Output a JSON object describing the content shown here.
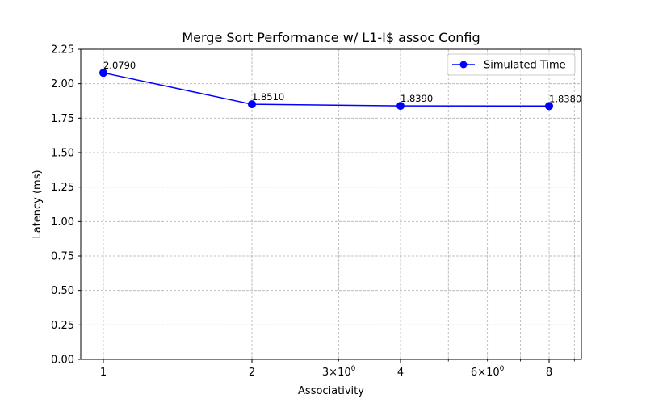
{
  "chart_data": {
    "type": "line",
    "title": "Merge Sort Performance w/ L1-I$ assoc Config",
    "xlabel": "Associativity",
    "ylabel": "Latency (ms)",
    "xscale": "log2",
    "xlim": [
      0.9,
      9.3
    ],
    "ylim": [
      0,
      2.25
    ],
    "x_major_ticks": [
      {
        "value": 1,
        "label": "1"
      },
      {
        "value": 2,
        "label": "2"
      },
      {
        "value": 4,
        "label": "4"
      },
      {
        "value": 8,
        "label": "8"
      }
    ],
    "x_minor_ticks": [
      {
        "value": 3,
        "base": "3",
        "exp": "0"
      },
      {
        "value": 5,
        "base": "",
        "exp": ""
      },
      {
        "value": 6,
        "base": "6",
        "exp": "0"
      },
      {
        "value": 7,
        "base": "",
        "exp": ""
      },
      {
        "value": 9,
        "base": "",
        "exp": ""
      }
    ],
    "y_ticks": [
      "0.00",
      "0.25",
      "0.50",
      "0.75",
      "1.00",
      "1.25",
      "1.50",
      "1.75",
      "2.00",
      "2.25"
    ],
    "grid": true,
    "legend_position": "top-right",
    "series": [
      {
        "name": "Simulated Time",
        "color": "#0000ff",
        "marker": "circle",
        "x": [
          1,
          2,
          4,
          8
        ],
        "y": [
          2.079,
          1.851,
          1.839,
          1.838
        ],
        "labels": [
          "2.0790",
          "1.8510",
          "1.8390",
          "1.8380"
        ]
      }
    ]
  }
}
